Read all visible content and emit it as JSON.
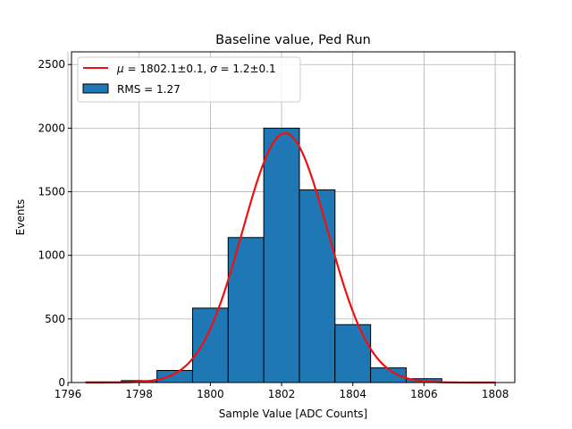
{
  "chart_data": {
    "type": "bar",
    "title": "Baseline value, Ped Run",
    "xlabel": "Sample Value [ADC Counts]",
    "ylabel": "Events",
    "xlim": [
      1796.1,
      1808.55
    ],
    "ylim": [
      0,
      2600
    ],
    "xticks": [
      1796,
      1798,
      1800,
      1802,
      1804,
      1806,
      1808
    ],
    "yticks": [
      0,
      500,
      1000,
      1500,
      2000,
      2500
    ],
    "grid": true,
    "legend_position": "upper-left",
    "bin_width": 1,
    "bins": [
      {
        "center": 1797,
        "count": 5
      },
      {
        "center": 1798,
        "count": 15
      },
      {
        "center": 1799,
        "count": 95
      },
      {
        "center": 1800,
        "count": 585
      },
      {
        "center": 1801,
        "count": 1140
      },
      {
        "center": 1802,
        "count": 2000
      },
      {
        "center": 1803,
        "count": 1515
      },
      {
        "center": 1804,
        "count": 455
      },
      {
        "center": 1805,
        "count": 115
      },
      {
        "center": 1806,
        "count": 30
      },
      {
        "center": 1807,
        "count": 3
      }
    ],
    "fit": {
      "mu": 1802.1,
      "sigma": 1.2,
      "amplitude": 1960,
      "x_range": [
        1796.5,
        1808.0
      ]
    },
    "legend": [
      {
        "kind": "line",
        "parts": [
          "μ",
          " = 1802.1±0.1, ",
          "σ",
          " = 1.2±0.1"
        ]
      },
      {
        "kind": "patch",
        "label": "RMS = 1.27"
      }
    ],
    "colors": {
      "bar_fill": "#1f77b4",
      "bar_edge": "#000000",
      "fit_line": "#ee1111",
      "grid": "#b0b0b0"
    }
  }
}
